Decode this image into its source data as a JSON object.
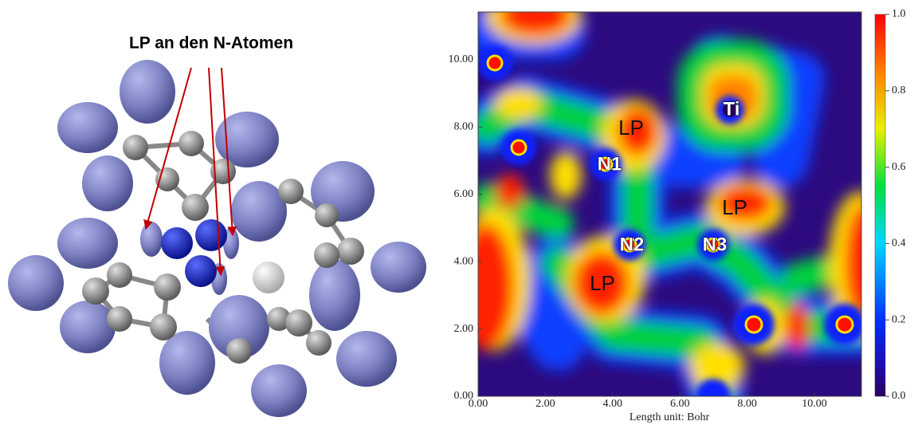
{
  "left_panel": {
    "title": "LP an den N-Atomen"
  },
  "right_panel": {
    "x_ticks": [
      "0.00",
      "2.00",
      "4.00",
      "6.00",
      "8.00",
      "10.00"
    ],
    "y_ticks": [
      "0.00",
      "2.00",
      "4.00",
      "6.00",
      "8.00",
      "10.00"
    ],
    "x_axis_label": "Length unit: Bohr",
    "atom_labels": [
      "Ti",
      "N1",
      "N2",
      "N3"
    ],
    "lp_labels": [
      "LP",
      "LP",
      "LP"
    ],
    "colorbar_ticks": [
      "0.0",
      "0.2",
      "0.4",
      "0.6",
      "0.8",
      "1.0"
    ]
  }
}
